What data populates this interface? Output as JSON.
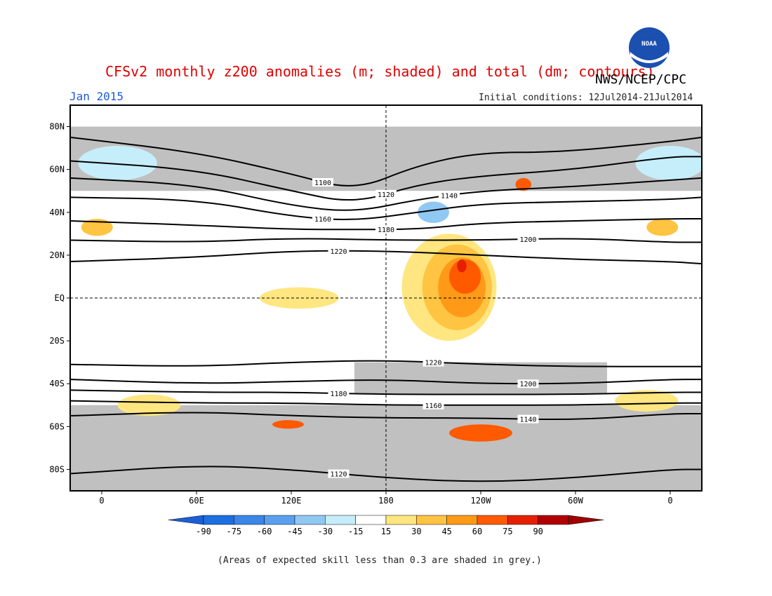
{
  "title": "CFSv2 monthly z200 anomalies (m; shaded) and total (dm; contours)",
  "month": "Jan 2015",
  "agency": "NWS/NCEP/CPC",
  "logo": {
    "name": "NOAA",
    "color": "#1b4fb0"
  },
  "initial_conditions": "Initial conditions: 12Jul2014-21Jul2014",
  "footnote": "(Areas of expected skill less than 0.3 are shaded in grey.)",
  "map": {
    "lon_range": [
      -20,
      380
    ],
    "lat_range": [
      -90,
      90
    ],
    "lat_labels": [
      {
        "lat": 80,
        "text": "80N"
      },
      {
        "lat": 60,
        "text": "60N"
      },
      {
        "lat": 40,
        "text": "40N"
      },
      {
        "lat": 20,
        "text": "20N"
      },
      {
        "lat": 0,
        "text": "EQ"
      },
      {
        "lat": -20,
        "text": "20S"
      },
      {
        "lat": -40,
        "text": "40S"
      },
      {
        "lat": -60,
        "text": "60S"
      },
      {
        "lat": -80,
        "text": "80S"
      }
    ],
    "lon_labels": [
      {
        "lon": 0,
        "text": "0"
      },
      {
        "lon": 60,
        "text": "60E"
      },
      {
        "lon": 120,
        "text": "120E"
      },
      {
        "lon": 180,
        "text": "180"
      },
      {
        "lon": 240,
        "text": "120W"
      },
      {
        "lon": 300,
        "text": "60W"
      },
      {
        "lon": 360,
        "text": "0"
      }
    ],
    "grey_color": "#c0c0c0",
    "grey_regions": [
      {
        "lon": [
          -20,
          380
        ],
        "lat": [
          -90,
          -50
        ]
      },
      {
        "lon": [
          -20,
          380
        ],
        "lat": [
          50,
          80
        ]
      },
      {
        "lon": [
          160,
          320
        ],
        "lat": [
          -45,
          -30
        ]
      }
    ],
    "anomalies": [
      {
        "lon": 220,
        "lat": 5,
        "rlon": 30,
        "rlat": 25,
        "value": 15
      },
      {
        "lon": 225,
        "lat": 5,
        "rlon": 22,
        "rlat": 20,
        "value": 30
      },
      {
        "lon": 228,
        "lat": 5,
        "rlon": 15,
        "rlat": 14,
        "value": 45
      },
      {
        "lon": 230,
        "lat": 10,
        "rlon": 10,
        "rlat": 8,
        "value": 60
      },
      {
        "lon": 228,
        "lat": 15,
        "rlon": 3,
        "rlat": 3,
        "value": 75
      },
      {
        "lon": 125,
        "lat": 0,
        "rlon": 25,
        "rlat": 5,
        "value": 15
      },
      {
        "lon": 210,
        "lat": 40,
        "rlon": 10,
        "rlat": 5,
        "value": -45
      },
      {
        "lon": 267,
        "lat": 53,
        "rlon": 5,
        "rlat": 3,
        "value": 60
      },
      {
        "lon": 240,
        "lat": -63,
        "rlon": 20,
        "rlat": 4,
        "value": 60
      },
      {
        "lon": 118,
        "lat": -59,
        "rlon": 10,
        "rlat": 2,
        "value": 60
      },
      {
        "lon": 10,
        "lat": 63,
        "rlon": 25,
        "rlat": 8,
        "value": -30
      },
      {
        "lon": 360,
        "lat": 63,
        "rlon": 22,
        "rlat": 8,
        "value": -30
      },
      {
        "lon": -3,
        "lat": 33,
        "rlon": 10,
        "rlat": 4,
        "value": 30
      },
      {
        "lon": 355,
        "lat": 33,
        "rlon": 10,
        "rlat": 4,
        "value": 30
      },
      {
        "lon": 10,
        "lat": 20,
        "rlon": 30,
        "rlat": 4,
        "value": -15
      },
      {
        "lon": 350,
        "lat": 20,
        "rlon": 30,
        "rlat": 4,
        "value": -15
      },
      {
        "lon": 30,
        "lat": -50,
        "rlon": 20,
        "rlat": 5,
        "value": 15
      },
      {
        "lon": 345,
        "lat": -48,
        "rlon": 20,
        "rlat": 5,
        "value": 15
      }
    ],
    "contours": [
      {
        "label": "1100",
        "points": [
          [
            -20,
            75
          ],
          [
            60,
            68
          ],
          [
            120,
            58
          ],
          [
            160,
            50
          ],
          [
            200,
            62
          ],
          [
            240,
            68
          ],
          [
            290,
            68
          ],
          [
            360,
            73
          ],
          [
            380,
            75
          ]
        ]
      },
      {
        "label": "1120",
        "points": [
          [
            -20,
            64
          ],
          [
            60,
            60
          ],
          [
            120,
            50
          ],
          [
            160,
            44
          ],
          [
            200,
            53
          ],
          [
            240,
            57
          ],
          [
            300,
            60
          ],
          [
            360,
            66
          ],
          [
            380,
            66
          ]
        ]
      },
      {
        "label": "1140",
        "points": [
          [
            -20,
            56
          ],
          [
            60,
            53
          ],
          [
            120,
            43
          ],
          [
            160,
            40
          ],
          [
            200,
            46
          ],
          [
            240,
            50
          ],
          [
            300,
            52
          ],
          [
            360,
            55
          ],
          [
            380,
            56
          ]
        ]
      },
      {
        "label": "1160",
        "points": [
          [
            -20,
            47
          ],
          [
            60,
            46
          ],
          [
            120,
            38
          ],
          [
            160,
            36
          ],
          [
            200,
            40
          ],
          [
            240,
            44
          ],
          [
            300,
            45
          ],
          [
            360,
            46
          ],
          [
            380,
            47
          ]
        ]
      },
      {
        "label": "1180",
        "points": [
          [
            -20,
            36
          ],
          [
            60,
            34
          ],
          [
            120,
            32
          ],
          [
            160,
            32
          ],
          [
            200,
            32
          ],
          [
            240,
            35
          ],
          [
            300,
            36
          ],
          [
            360,
            37
          ],
          [
            380,
            37
          ]
        ]
      },
      {
        "label": "1200",
        "points": [
          [
            -20,
            27
          ],
          [
            60,
            26
          ],
          [
            120,
            28
          ],
          [
            180,
            27
          ],
          [
            240,
            27
          ],
          [
            300,
            28
          ],
          [
            360,
            26
          ],
          [
            380,
            26
          ]
        ]
      },
      {
        "label": "1220",
        "points": [
          [
            -20,
            17
          ],
          [
            60,
            19
          ],
          [
            120,
            22
          ],
          [
            180,
            22
          ],
          [
            240,
            20
          ],
          [
            300,
            18
          ],
          [
            360,
            17
          ],
          [
            380,
            16
          ]
        ]
      },
      {
        "label": "1220",
        "points": [
          [
            -20,
            -31
          ],
          [
            60,
            -32
          ],
          [
            120,
            -30
          ],
          [
            180,
            -29
          ],
          [
            240,
            -31
          ],
          [
            300,
            -32
          ],
          [
            360,
            -32
          ],
          [
            380,
            -32
          ]
        ]
      },
      {
        "label": "1200",
        "points": [
          [
            -20,
            -38
          ],
          [
            60,
            -40
          ],
          [
            120,
            -39
          ],
          [
            180,
            -38
          ],
          [
            240,
            -40
          ],
          [
            300,
            -40
          ],
          [
            360,
            -38
          ],
          [
            380,
            -38
          ]
        ]
      },
      {
        "label": "1180",
        "points": [
          [
            -20,
            -43
          ],
          [
            60,
            -44
          ],
          [
            120,
            -44
          ],
          [
            180,
            -45
          ],
          [
            240,
            -45
          ],
          [
            300,
            -45
          ],
          [
            360,
            -44
          ],
          [
            380,
            -44
          ]
        ]
      },
      {
        "label": "1160",
        "points": [
          [
            -20,
            -48
          ],
          [
            60,
            -49
          ],
          [
            120,
            -49
          ],
          [
            180,
            -50
          ],
          [
            240,
            -50
          ],
          [
            300,
            -50
          ],
          [
            360,
            -49
          ],
          [
            380,
            -49
          ]
        ]
      },
      {
        "label": "1140",
        "points": [
          [
            -20,
            -55
          ],
          [
            60,
            -53
          ],
          [
            120,
            -55
          ],
          [
            180,
            -56
          ],
          [
            240,
            -56
          ],
          [
            300,
            -57
          ],
          [
            360,
            -54
          ],
          [
            380,
            -54
          ]
        ]
      },
      {
        "label": "1120",
        "points": [
          [
            -20,
            -82
          ],
          [
            60,
            -78
          ],
          [
            120,
            -80
          ],
          [
            180,
            -84
          ],
          [
            240,
            -86
          ],
          [
            300,
            -84
          ],
          [
            360,
            -80
          ],
          [
            380,
            -80
          ]
        ]
      }
    ]
  },
  "colorbar": {
    "labels": [
      "-90",
      "-75",
      "-60",
      "-45",
      "-30",
      "-15",
      "15",
      "30",
      "45",
      "60",
      "75",
      "90"
    ],
    "colors": [
      "#1c6fe0",
      "#3b86e8",
      "#5aa0ee",
      "#90c8f4",
      "#c6eefa",
      "#ffffff",
      "#ffe680",
      "#ffc441",
      "#ff9a18",
      "#ff5a00",
      "#e52000",
      "#b00000"
    ]
  }
}
